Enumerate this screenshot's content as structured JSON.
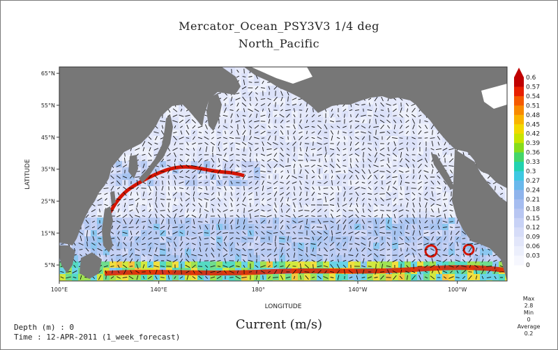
{
  "header": {
    "title": "Mercator_Ocean_PSY3V3 1/4 deg",
    "subtitle": "North_Pacific"
  },
  "map": {
    "xlabel": "LONGITUDE",
    "ylabel": "LATITUDE",
    "lon_ticks": [
      {
        "label": "100°E",
        "lon": 100
      },
      {
        "label": "140°E",
        "lon": 140
      },
      {
        "label": "180°",
        "lon": 180
      },
      {
        "label": "140°W",
        "lon": 220
      },
      {
        "label": "100°W",
        "lon": 260
      }
    ],
    "lat_ticks": [
      {
        "label": "65°N",
        "lat": 65
      },
      {
        "label": "55°N",
        "lat": 55
      },
      {
        "label": "45°N",
        "lat": 45
      },
      {
        "label": "35°N",
        "lat": 35
      },
      {
        "label": "25°N",
        "lat": 25
      },
      {
        "label": "15°N",
        "lat": 15
      },
      {
        "label": "5°N",
        "lat": 5
      }
    ],
    "lon_range": [
      100,
      280
    ],
    "lat_range": [
      0,
      67
    ],
    "land_color": "#777777",
    "ocean_color": "#eef1fb"
  },
  "colorbar": {
    "labels": [
      "0.6",
      "0.57",
      "0.54",
      "0.51",
      "0.48",
      "0.45",
      "0.42",
      "0.39",
      "0.36",
      "0.33",
      "0.3",
      "0.27",
      "0.24",
      "0.21",
      "0.18",
      "0.15",
      "0.12",
      "0.09",
      "0.06",
      "0.03",
      "0"
    ],
    "colors": [
      "#c00000",
      "#e82000",
      "#f55a00",
      "#f88a00",
      "#f9b400",
      "#f2d800",
      "#c8e400",
      "#86dc1c",
      "#44d66a",
      "#22d2b0",
      "#3ec8e2",
      "#6ab8ec",
      "#8fb4ec",
      "#a6bdf0",
      "#b8c6f2",
      "#c8d2f6",
      "#d6dcf8",
      "#e2e6fa",
      "#eceffc",
      "#f6f7fe"
    ]
  },
  "units_label": "Current (m/s)",
  "info": {
    "depth": "Depth (m) : 0",
    "time": "Time : 12-APR-2011 (1_week_forecast)"
  },
  "stats": {
    "max_label": "Max",
    "max_value": "2.8",
    "min_label": "Min",
    "min_value": "0",
    "avg_label": "Average",
    "avg_value": "0.2"
  }
}
